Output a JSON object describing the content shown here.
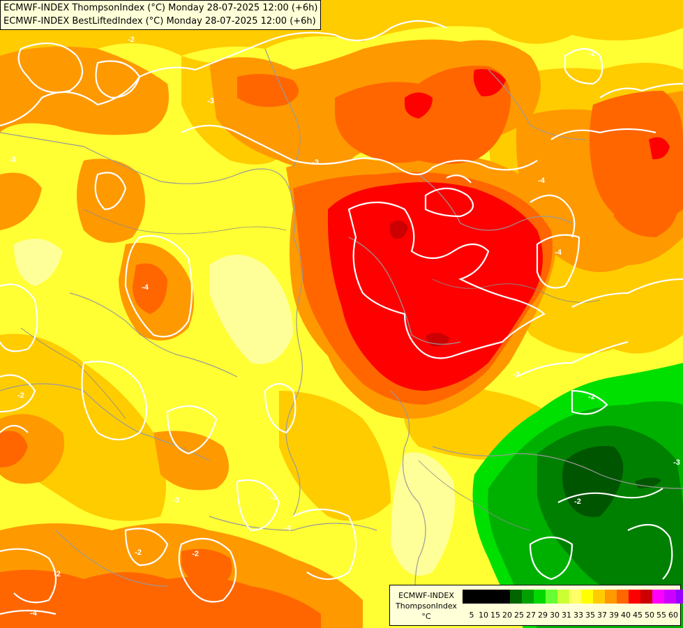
{
  "title_lines": [
    "ECMWF-INDEX ThompsonIndex (°C) Monday 28-07-2025 12:00 (+6h)",
    "ECMWF-INDEX BestLiftedIndex (°C) Monday 28-07-2025 12:00 (+6h)"
  ],
  "legend": {
    "model": "ECMWF-INDEX",
    "parameter": "ThompsonIndex",
    "unit": "°C",
    "colors": [
      "#000000",
      "#000000",
      "#000000",
      "#000000",
      "#006400",
      "#00a000",
      "#00d800",
      "#66ff33",
      "#ccff33",
      "#ffff66",
      "#ffff00",
      "#ffcc00",
      "#ff9900",
      "#ff6600",
      "#ff0000",
      "#cc0000",
      "#ff00ff",
      "#cc00ff",
      "#9900ff",
      "#6600ff",
      "#0000ff"
    ],
    "ticks": [
      "5",
      "10",
      "15",
      "20",
      "25",
      "27",
      "29",
      "30",
      "31",
      "33",
      "35",
      "37",
      "39",
      "40",
      "45",
      "50",
      "55",
      "60"
    ]
  },
  "contour_labels": [
    "-2",
    "-3",
    "-4",
    "-2",
    "-3",
    "-4",
    "-2",
    "-3",
    "-2",
    "-3",
    "-4",
    "-2",
    "-2",
    "-3",
    "-3",
    "-2",
    "-4",
    "-4",
    "-3",
    "-2"
  ],
  "colors": {
    "base": "#ffff33",
    "pale_yellow": "#ffff99",
    "orange_light": "#ffcc00",
    "orange": "#ff9900",
    "orange_dark": "#ff6600",
    "red": "#ff0000",
    "dark_red": "#cc0000",
    "green_light": "#00e000",
    "green": "#00b000",
    "green_dark": "#008000",
    "green_deep": "#005500",
    "contour": "#ffffff",
    "border": "#9a9a9a",
    "river": "#8a8a8a"
  }
}
